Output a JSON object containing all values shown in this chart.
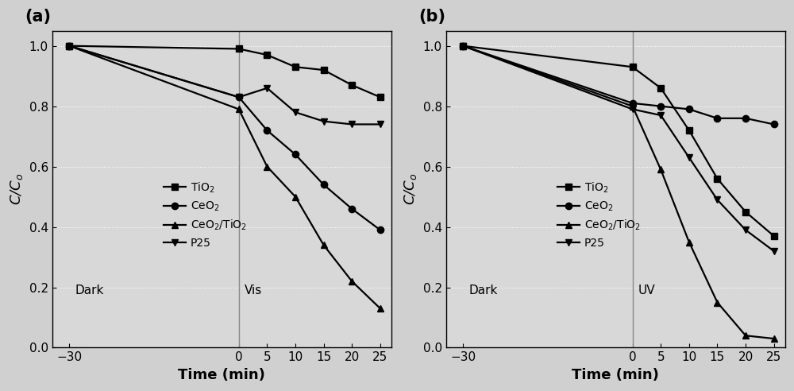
{
  "panel_a": {
    "label": "(a)",
    "light_label": "Vis",
    "series": {
      "TiO2": {
        "x": [
          -30,
          0,
          5,
          10,
          15,
          20,
          25
        ],
        "y": [
          1.0,
          0.99,
          0.97,
          0.93,
          0.92,
          0.87,
          0.83
        ],
        "marker": "s"
      },
      "CeO2": {
        "x": [
          -30,
          0,
          5,
          10,
          15,
          20,
          25
        ],
        "y": [
          1.0,
          0.83,
          0.72,
          0.64,
          0.54,
          0.46,
          0.39
        ],
        "marker": "o"
      },
      "CeO2/TiO2": {
        "x": [
          -30,
          0,
          5,
          10,
          15,
          20,
          25
        ],
        "y": [
          1.0,
          0.79,
          0.6,
          0.5,
          0.34,
          0.22,
          0.13
        ],
        "marker": "^"
      },
      "P25": {
        "x": [
          -30,
          0,
          5,
          10,
          15,
          20,
          25
        ],
        "y": [
          1.0,
          0.83,
          0.86,
          0.78,
          0.75,
          0.74,
          0.74
        ],
        "marker": "v"
      }
    }
  },
  "panel_b": {
    "label": "(b)",
    "light_label": "UV",
    "series": {
      "TiO2": {
        "x": [
          -30,
          0,
          5,
          10,
          15,
          20,
          25
        ],
        "y": [
          1.0,
          0.93,
          0.86,
          0.72,
          0.56,
          0.45,
          0.37
        ],
        "marker": "s"
      },
      "CeO2": {
        "x": [
          -30,
          0,
          5,
          10,
          15,
          20,
          25
        ],
        "y": [
          1.0,
          0.81,
          0.8,
          0.79,
          0.76,
          0.76,
          0.74
        ],
        "marker": "o"
      },
      "CeO2/TiO2": {
        "x": [
          -30,
          0,
          5,
          10,
          15,
          20,
          25
        ],
        "y": [
          1.0,
          0.8,
          0.59,
          0.35,
          0.15,
          0.04,
          0.03
        ],
        "marker": "^"
      },
      "P25": {
        "x": [
          -30,
          0,
          5,
          10,
          15,
          20,
          25
        ],
        "y": [
          1.0,
          0.79,
          0.77,
          0.63,
          0.49,
          0.39,
          0.32
        ],
        "marker": "v"
      }
    }
  },
  "legend_labels": {
    "TiO2": "TiO$_2$",
    "CeO2": "CeO$_2$",
    "CeO2/TiO2": "CeO$_2$/TiO$_2$",
    "P25": "P25"
  },
  "color": "black",
  "linewidth": 1.6,
  "markersize": 6,
  "xlabel": "Time (min)",
  "ylabel": "C/C$_o$",
  "xlim": [
    -33,
    27
  ],
  "ylim": [
    0.0,
    1.05
  ],
  "xticks": [
    -30,
    0,
    5,
    10,
    15,
    20,
    25
  ],
  "yticks": [
    0.0,
    0.2,
    0.4,
    0.6,
    0.8,
    1.0
  ],
  "background_color": "#d8d8d8",
  "vline_x": 0,
  "fontsize_xlabel": 13,
  "fontsize_ylabel": 13,
  "fontsize_tick": 11,
  "fontsize_legend": 10,
  "fontsize_panel": 15,
  "fontsize_annotation": 11
}
